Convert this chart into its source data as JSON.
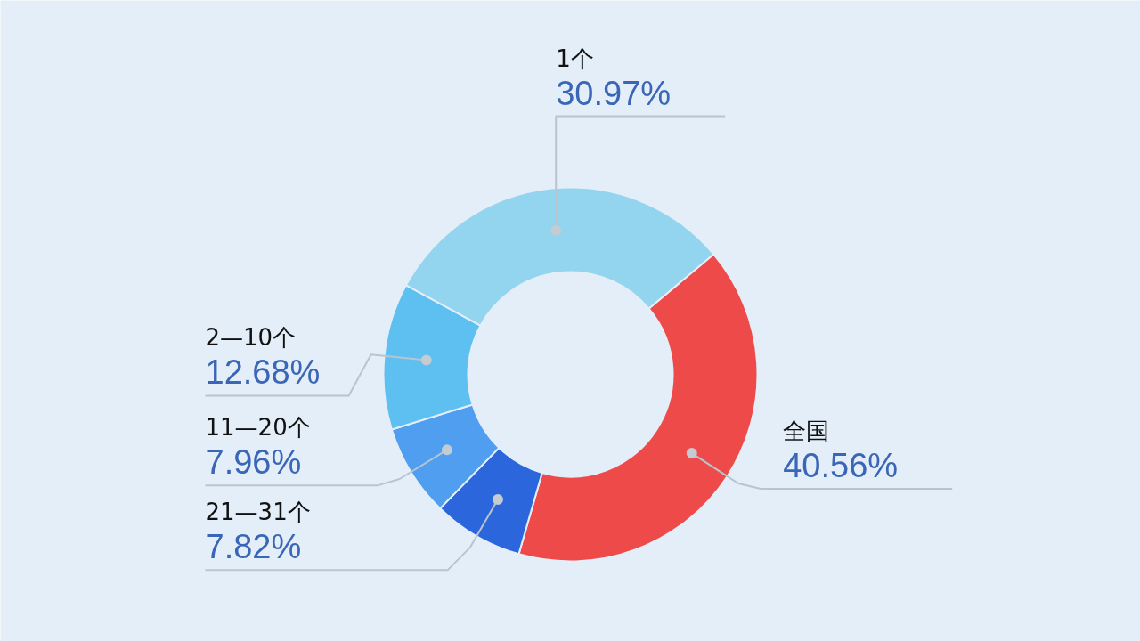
{
  "chart_data": {
    "type": "donut",
    "categories": [
      "全国",
      "21—31个",
      "11—20个",
      "2—10个",
      "1个"
    ],
    "values": [
      40.56,
      7.82,
      7.96,
      12.68,
      30.97
    ],
    "colors": [
      "#ef4a4a",
      "#2b66dd",
      "#4f9ef0",
      "#5ec0f0",
      "#93d4ee"
    ],
    "value_labels": [
      "40.56%",
      "7.82%",
      "7.96%",
      "12.68%",
      "30.97%"
    ]
  }
}
